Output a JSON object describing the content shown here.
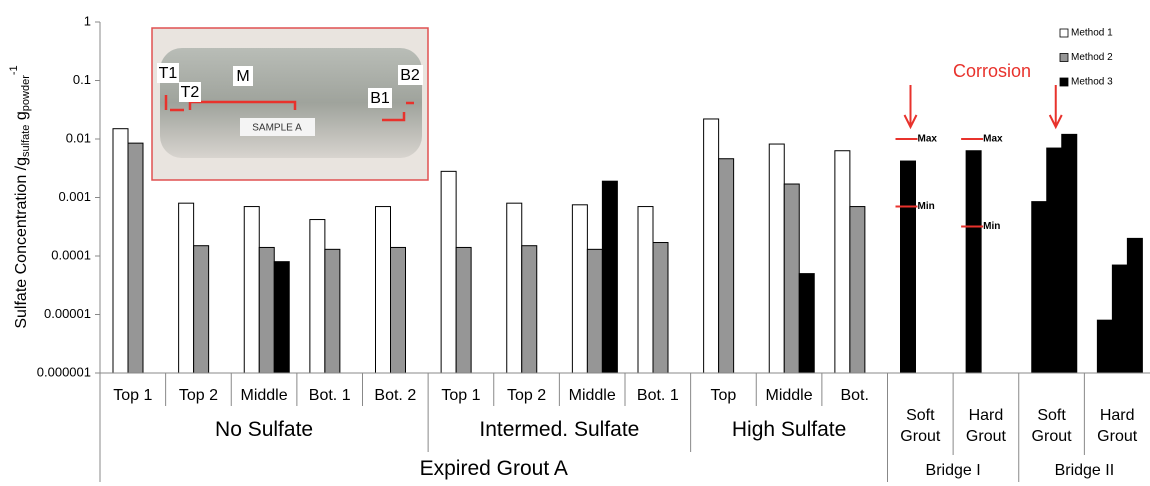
{
  "chart_data": {
    "type": "bar",
    "log_scale": true,
    "y_label": {
      "text": "Sulfate Concentration /g",
      "sub1": "sulfate",
      "mid": " g",
      "sub2": "powder",
      "sup": "-1"
    },
    "ylim": [
      1e-06,
      1
    ],
    "yticks": [
      1,
      0.1,
      0.01,
      0.001,
      0.0001,
      1e-05,
      1e-06
    ],
    "legend": "top-right",
    "sections": [
      {
        "name": "Expired Grout A",
        "groups": [
          {
            "name": "No Sulfate",
            "categories": [
              "Top 1",
              "Top 2",
              "Middle",
              "Bot. 1",
              "Bot. 2"
            ]
          },
          {
            "name": "Intermed. Sulfate",
            "categories": [
              "Top 1",
              "Top 2",
              "Middle",
              "Bot. 1"
            ]
          },
          {
            "name": "High Sulfate",
            "categories": [
              "Top",
              "Middle",
              "Bot."
            ]
          }
        ]
      },
      {
        "name": "Bridge I",
        "categories": [
          "Soft Grout",
          "Hard Grout"
        ]
      },
      {
        "name": "Bridge II",
        "categories": [
          "Soft Grout",
          "Hard Grout"
        ]
      }
    ],
    "series": [
      {
        "name": "Method 1",
        "color": "#ffffff",
        "colors": [
          "#ffffff",
          "#ffffff",
          "#ffffff",
          "#ffffff",
          "#ffffff",
          "#ffffff",
          "#ffffff",
          "#ffffff",
          "#ffffff",
          "#ffffff",
          "#ffffff",
          "#ffffff",
          "#000000",
          "#000000",
          "#000000",
          "#000000"
        ],
        "values": [
          0.015,
          0.0008,
          0.0007,
          0.00042,
          0.0007,
          0.0028,
          0.0008,
          0.00075,
          0.0007,
          0.022,
          0.0082,
          0.0063,
          0.0042,
          0.0063,
          0.00085,
          8e-06
        ]
      },
      {
        "name": "Method 2",
        "color": "#969696",
        "colors": [
          "#969696",
          "#969696",
          "#969696",
          "#969696",
          "#969696",
          "#969696",
          "#969696",
          "#969696",
          "#969696",
          "#969696",
          "#969696",
          "#969696",
          "#000000",
          "#000000",
          "#000000",
          "#000000"
        ],
        "values": [
          0.0085,
          0.00015,
          0.00014,
          0.00013,
          0.00014,
          0.00014,
          0.00015,
          0.00013,
          0.00017,
          0.0046,
          0.0017,
          0.0007,
          null,
          null,
          0.007,
          7e-05
        ]
      },
      {
        "name": "Method 3",
        "color": "#000000",
        "values": [
          null,
          null,
          8e-05,
          null,
          null,
          null,
          null,
          0.0019,
          null,
          null,
          5e-05,
          null,
          null,
          null,
          0.012,
          0.0002
        ]
      }
    ],
    "markers": [
      {
        "category": 12,
        "max": 0.01,
        "min": 0.0007,
        "max_label": "Max",
        "min_label": "Min"
      },
      {
        "category": 13,
        "max": 0.01,
        "min": 0.00032,
        "max_label": "Max",
        "min_label": "Min"
      }
    ],
    "marker_color": "#e8322c",
    "annotation": "Corrosion",
    "inset": {
      "labels": [
        "T1",
        "T2",
        "M",
        "B1",
        "B2"
      ],
      "sample": "SAMPLE A"
    }
  }
}
